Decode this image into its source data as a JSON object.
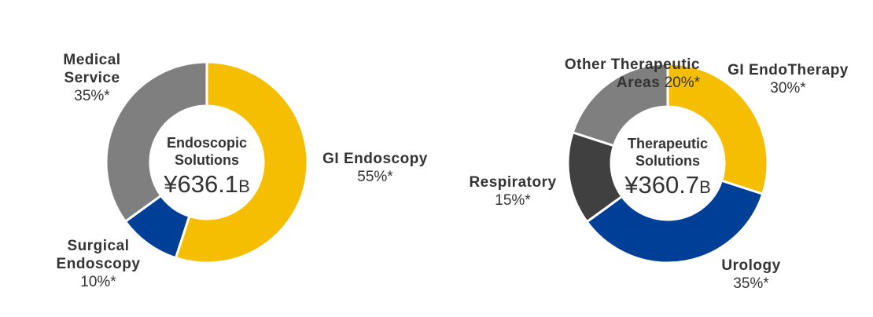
{
  "chart_data": [
    {
      "type": "donut",
      "center_title": "Endoscopic Solutions",
      "center_value": "¥636.1",
      "center_unit": "B",
      "categories": [
        "GI Endoscopy",
        "Surgical Endoscopy",
        "Medical Service"
      ],
      "values": [
        55,
        10,
        35
      ],
      "value_labels": [
        "55%*",
        "10%*",
        "35%*"
      ],
      "colors": [
        "#f5be00",
        "#003f98",
        "#7f7f7f"
      ]
    },
    {
      "type": "donut",
      "center_title": "Therapeutic Solutions",
      "center_value": "¥360.7",
      "center_unit": "B",
      "categories": [
        "GI EndoTherapy",
        "Urology",
        "Respiratory",
        "Other Therapeutic Areas"
      ],
      "values": [
        30,
        35,
        15,
        20
      ],
      "value_labels": [
        "30%*",
        "35%*",
        "15%*",
        "20%*"
      ],
      "colors": [
        "#f5be00",
        "#003f98",
        "#404040",
        "#7f7f7f"
      ]
    }
  ]
}
